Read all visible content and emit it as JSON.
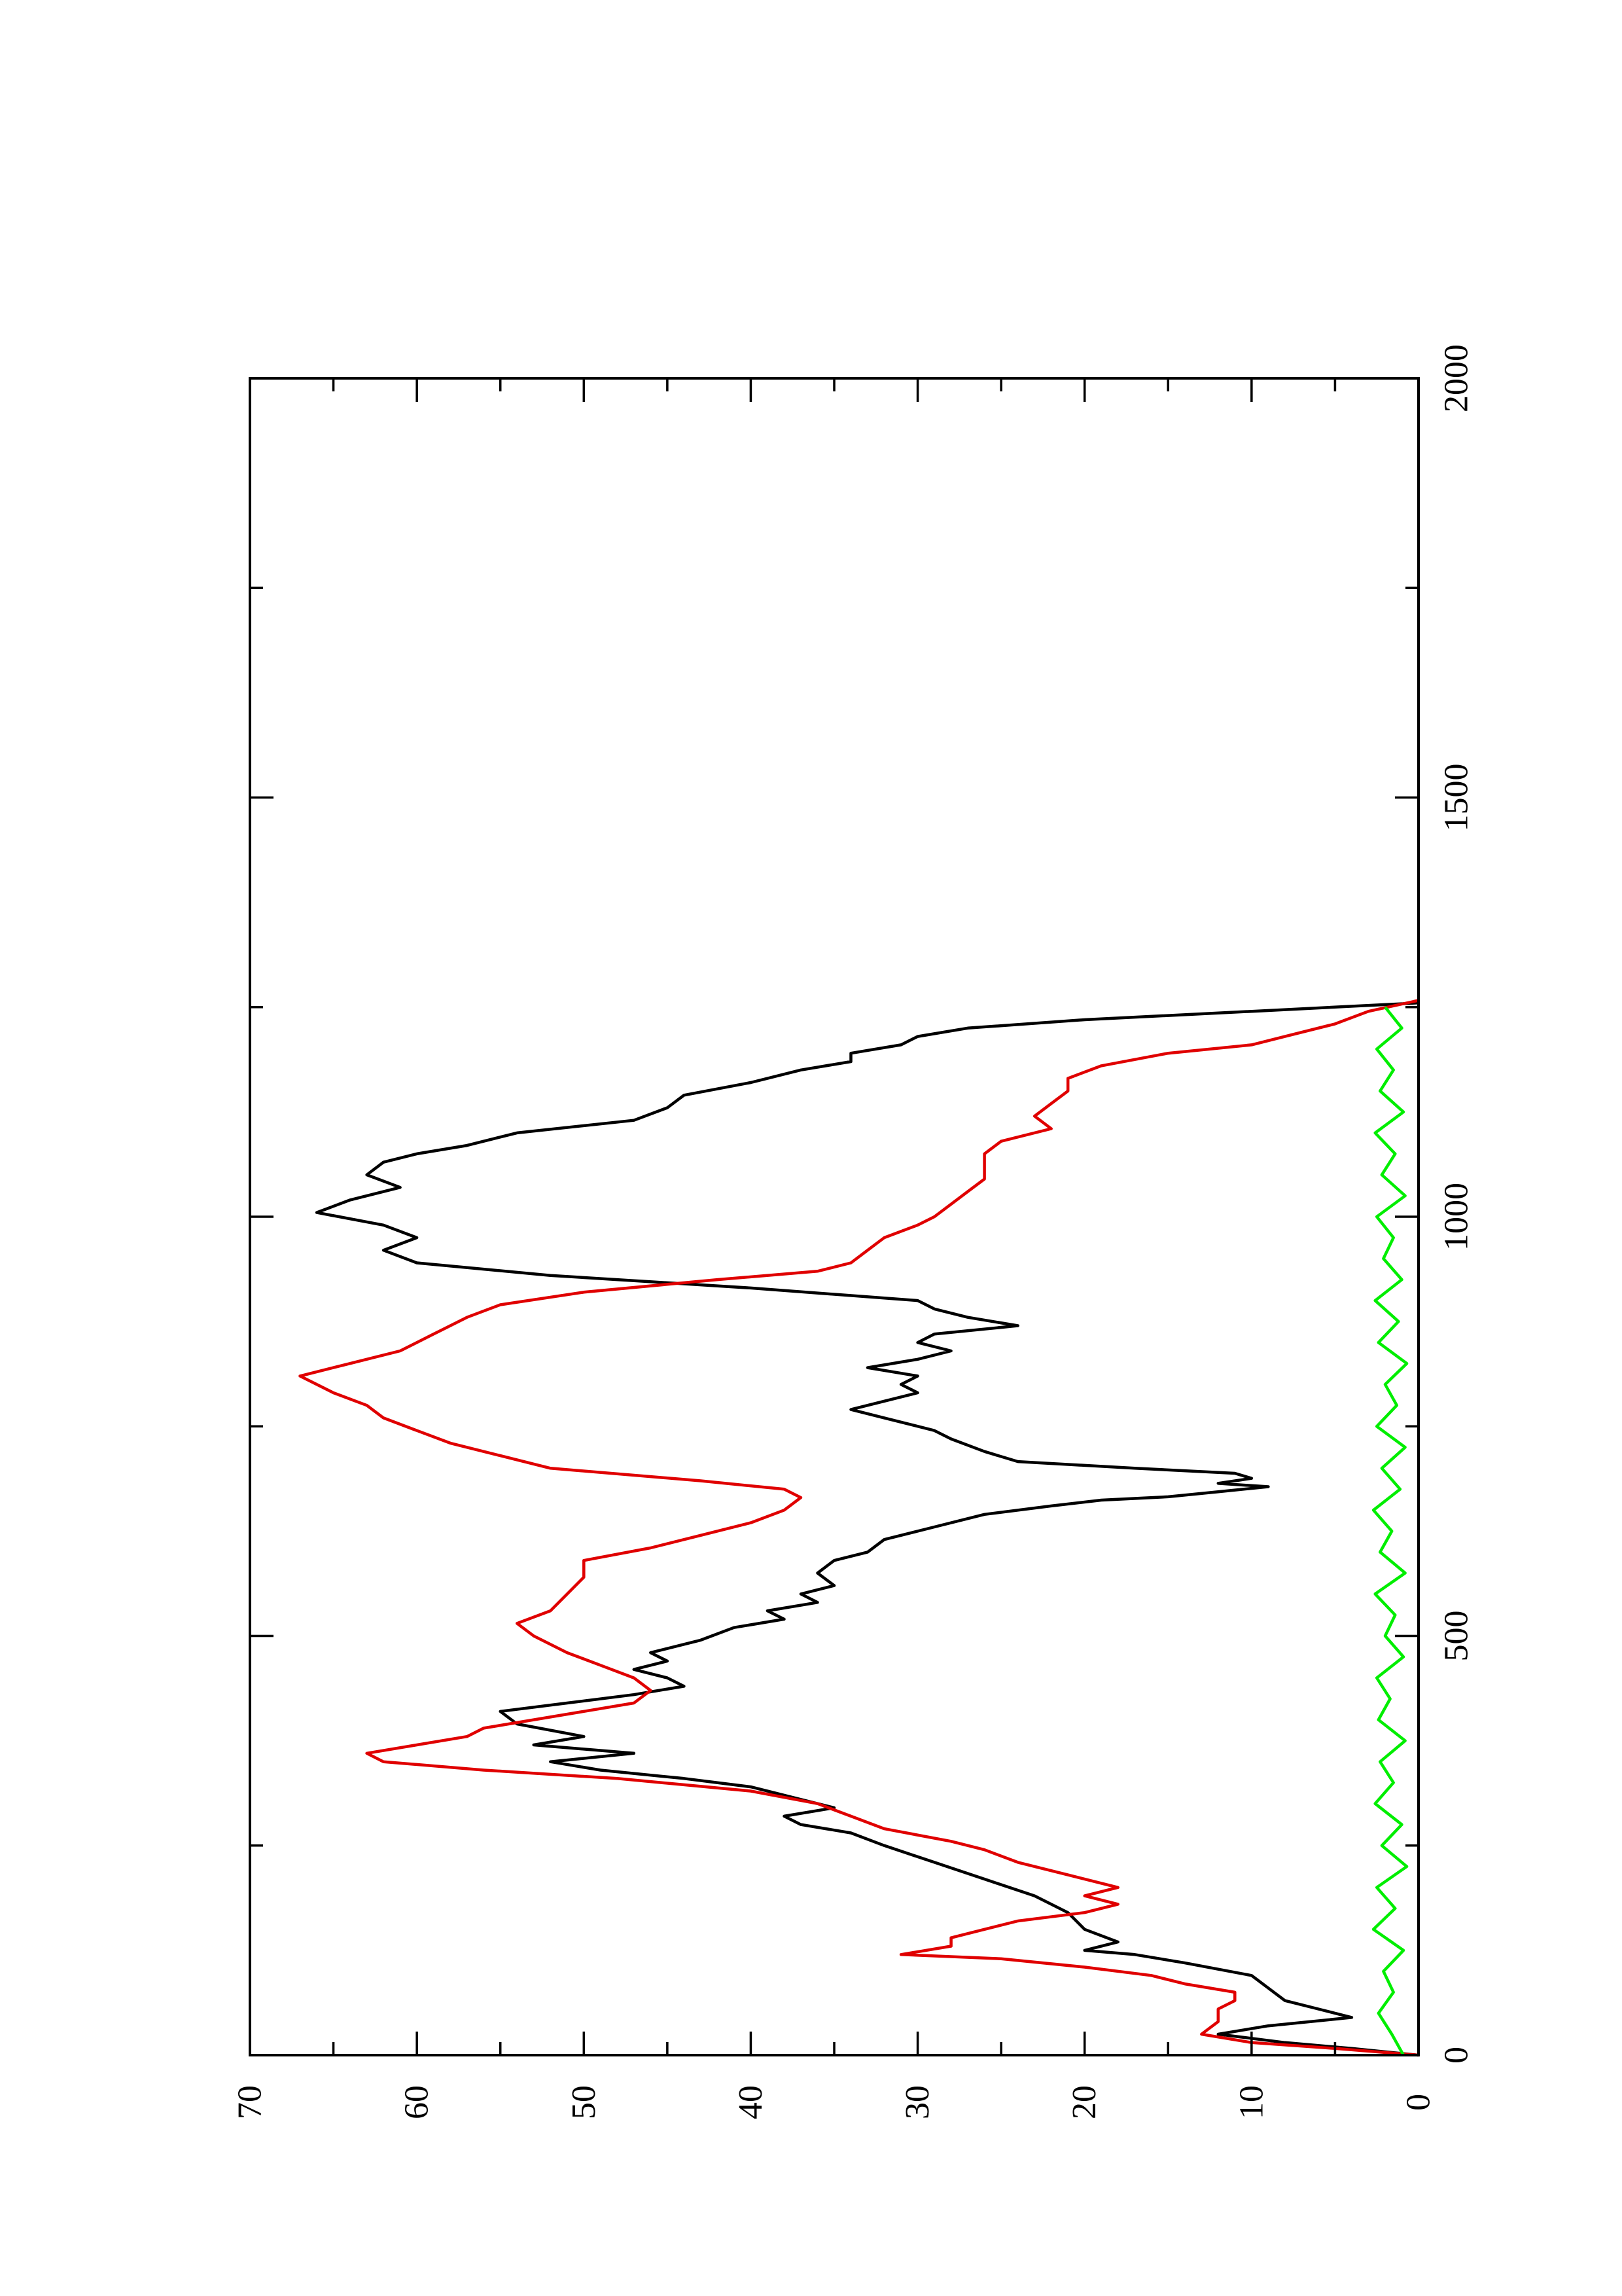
{
  "chart_data": {
    "type": "line",
    "orientation": "rotated-90-ccw",
    "title": "",
    "xlabel": "",
    "ylabel": "",
    "xlim": [
      0,
      2000
    ],
    "ylim": [
      0,
      70
    ],
    "x_ticks": [
      "0",
      "500",
      "1000",
      "1500",
      "2000"
    ],
    "y_ticks": [
      "0",
      "10",
      "20",
      "30",
      "40",
      "50",
      "60",
      "70"
    ],
    "grid": false,
    "legend": "none",
    "series": [
      {
        "color": "#000000",
        "points": [
          [
            0,
            0
          ],
          [
            8,
            4
          ],
          [
            15,
            8
          ],
          [
            25,
            12
          ],
          [
            35,
            9
          ],
          [
            45,
            4
          ],
          [
            55,
            6
          ],
          [
            65,
            8
          ],
          [
            80,
            9
          ],
          [
            95,
            10
          ],
          [
            110,
            14
          ],
          [
            120,
            17
          ],
          [
            125,
            20
          ],
          [
            135,
            18
          ],
          [
            150,
            20
          ],
          [
            170,
            21
          ],
          [
            190,
            23
          ],
          [
            210,
            26
          ],
          [
            230,
            29
          ],
          [
            250,
            32
          ],
          [
            265,
            34
          ],
          [
            275,
            37
          ],
          [
            285,
            38
          ],
          [
            295,
            35
          ],
          [
            305,
            37
          ],
          [
            320,
            40
          ],
          [
            330,
            44
          ],
          [
            340,
            49
          ],
          [
            350,
            52
          ],
          [
            360,
            47
          ],
          [
            370,
            53
          ],
          [
            380,
            50
          ],
          [
            395,
            54
          ],
          [
            410,
            55
          ],
          [
            420,
            51
          ],
          [
            430,
            47
          ],
          [
            440,
            44
          ],
          [
            450,
            45
          ],
          [
            460,
            47
          ],
          [
            470,
            45
          ],
          [
            480,
            46
          ],
          [
            495,
            43
          ],
          [
            510,
            41
          ],
          [
            520,
            38
          ],
          [
            530,
            39
          ],
          [
            540,
            36
          ],
          [
            550,
            37
          ],
          [
            560,
            35
          ],
          [
            575,
            36
          ],
          [
            590,
            35
          ],
          [
            600,
            33
          ],
          [
            615,
            32
          ],
          [
            630,
            29
          ],
          [
            645,
            26
          ],
          [
            655,
            22
          ],
          [
            662,
            19
          ],
          [
            666,
            15
          ],
          [
            672,
            12
          ],
          [
            678,
            9
          ],
          [
            682,
            12
          ],
          [
            688,
            10
          ],
          [
            694,
            11
          ],
          [
            700,
            17
          ],
          [
            708,
            24
          ],
          [
            720,
            26
          ],
          [
            735,
            28
          ],
          [
            745,
            29
          ],
          [
            760,
            32
          ],
          [
            770,
            34
          ],
          [
            780,
            32
          ],
          [
            790,
            30
          ],
          [
            800,
            31
          ],
          [
            810,
            30
          ],
          [
            820,
            33
          ],
          [
            830,
            30
          ],
          [
            840,
            28
          ],
          [
            850,
            30
          ],
          [
            860,
            29
          ],
          [
            870,
            24
          ],
          [
            880,
            27
          ],
          [
            890,
            29
          ],
          [
            900,
            30
          ],
          [
            915,
            40
          ],
          [
            930,
            52
          ],
          [
            945,
            60
          ],
          [
            960,
            62
          ],
          [
            975,
            60
          ],
          [
            990,
            62
          ],
          [
            1005,
            66
          ],
          [
            1020,
            64
          ],
          [
            1035,
            61
          ],
          [
            1050,
            63
          ],
          [
            1065,
            62
          ],
          [
            1075,
            60
          ],
          [
            1085,
            57
          ],
          [
            1100,
            54
          ],
          [
            1115,
            47
          ],
          [
            1130,
            45
          ],
          [
            1145,
            44
          ],
          [
            1160,
            40
          ],
          [
            1175,
            37
          ],
          [
            1185,
            34
          ],
          [
            1195,
            34
          ],
          [
            1205,
            31
          ],
          [
            1215,
            30
          ],
          [
            1225,
            27
          ],
          [
            1235,
            20
          ],
          [
            1245,
            10
          ],
          [
            1255,
            0
          ]
        ]
      },
      {
        "color": "#e00000",
        "points": [
          [
            0,
            0
          ],
          [
            8,
            5
          ],
          [
            15,
            10
          ],
          [
            25,
            13
          ],
          [
            40,
            12
          ],
          [
            55,
            12
          ],
          [
            65,
            11
          ],
          [
            75,
            11
          ],
          [
            85,
            14
          ],
          [
            95,
            16
          ],
          [
            105,
            20
          ],
          [
            115,
            25
          ],
          [
            120,
            31
          ],
          [
            130,
            28
          ],
          [
            140,
            28
          ],
          [
            150,
            26
          ],
          [
            160,
            24
          ],
          [
            170,
            20
          ],
          [
            180,
            18
          ],
          [
            190,
            20
          ],
          [
            200,
            18
          ],
          [
            215,
            21
          ],
          [
            230,
            24
          ],
          [
            245,
            26
          ],
          [
            255,
            28
          ],
          [
            270,
            32
          ],
          [
            285,
            34
          ],
          [
            300,
            36
          ],
          [
            315,
            40
          ],
          [
            330,
            48
          ],
          [
            340,
            56
          ],
          [
            350,
            62
          ],
          [
            360,
            63
          ],
          [
            370,
            60
          ],
          [
            380,
            57
          ],
          [
            390,
            56
          ],
          [
            400,
            53
          ],
          [
            410,
            50
          ],
          [
            420,
            47
          ],
          [
            435,
            46
          ],
          [
            450,
            47
          ],
          [
            465,
            49
          ],
          [
            480,
            51
          ],
          [
            500,
            53
          ],
          [
            515,
            54
          ],
          [
            530,
            52
          ],
          [
            550,
            51
          ],
          [
            570,
            50
          ],
          [
            590,
            50
          ],
          [
            605,
            46
          ],
          [
            620,
            43
          ],
          [
            635,
            40
          ],
          [
            650,
            38
          ],
          [
            665,
            37
          ],
          [
            675,
            38
          ],
          [
            685,
            43
          ],
          [
            700,
            52
          ],
          [
            715,
            55
          ],
          [
            730,
            58
          ],
          [
            745,
            60
          ],
          [
            760,
            62
          ],
          [
            775,
            63
          ],
          [
            790,
            65
          ],
          [
            810,
            67
          ],
          [
            825,
            64
          ],
          [
            840,
            61
          ],
          [
            860,
            59
          ],
          [
            880,
            57
          ],
          [
            895,
            55
          ],
          [
            910,
            50
          ],
          [
            925,
            42
          ],
          [
            935,
            36
          ],
          [
            945,
            34
          ],
          [
            960,
            33
          ],
          [
            975,
            32
          ],
          [
            990,
            30
          ],
          [
            1000,
            29
          ],
          [
            1015,
            28
          ],
          [
            1030,
            27
          ],
          [
            1045,
            26
          ],
          [
            1060,
            26
          ],
          [
            1075,
            26
          ],
          [
            1090,
            25
          ],
          [
            1105,
            22
          ],
          [
            1120,
            23
          ],
          [
            1135,
            22
          ],
          [
            1150,
            21
          ],
          [
            1165,
            21
          ],
          [
            1180,
            19
          ],
          [
            1195,
            15
          ],
          [
            1205,
            10
          ],
          [
            1215,
            8
          ],
          [
            1230,
            5
          ],
          [
            1245,
            3
          ],
          [
            1258,
            0
          ]
        ]
      },
      {
        "color": "#00ee00",
        "points": [
          [
            0,
            0.9
          ],
          [
            25,
            1.6
          ],
          [
            50,
            2.4
          ],
          [
            75,
            1.5
          ],
          [
            100,
            2.1
          ],
          [
            125,
            0.9
          ],
          [
            150,
            2.7
          ],
          [
            175,
            1.4
          ],
          [
            200,
            2.5
          ],
          [
            225,
            0.7
          ],
          [
            250,
            2.2
          ],
          [
            275,
            1.0
          ],
          [
            300,
            2.6
          ],
          [
            325,
            1.5
          ],
          [
            350,
            2.3
          ],
          [
            375,
            0.8
          ],
          [
            400,
            2.4
          ],
          [
            425,
            1.7
          ],
          [
            450,
            2.5
          ],
          [
            475,
            0.9
          ],
          [
            500,
            2.0
          ],
          [
            525,
            1.4
          ],
          [
            550,
            2.6
          ],
          [
            575,
            0.8
          ],
          [
            600,
            2.3
          ],
          [
            625,
            1.6
          ],
          [
            650,
            2.7
          ],
          [
            675,
            1.1
          ],
          [
            700,
            2.2
          ],
          [
            725,
            0.8
          ],
          [
            750,
            2.5
          ],
          [
            775,
            1.3
          ],
          [
            800,
            2.0
          ],
          [
            825,
            0.7
          ],
          [
            850,
            2.4
          ],
          [
            875,
            1.2
          ],
          [
            900,
            2.6
          ],
          [
            925,
            1.0
          ],
          [
            950,
            2.1
          ],
          [
            975,
            1.5
          ],
          [
            1000,
            2.5
          ],
          [
            1025,
            0.8
          ],
          [
            1050,
            2.2
          ],
          [
            1075,
            1.4
          ],
          [
            1100,
            2.6
          ],
          [
            1125,
            0.9
          ],
          [
            1150,
            2.3
          ],
          [
            1175,
            1.5
          ],
          [
            1200,
            2.5
          ],
          [
            1225,
            1.0
          ],
          [
            1250,
            2.0
          ]
        ]
      }
    ]
  }
}
